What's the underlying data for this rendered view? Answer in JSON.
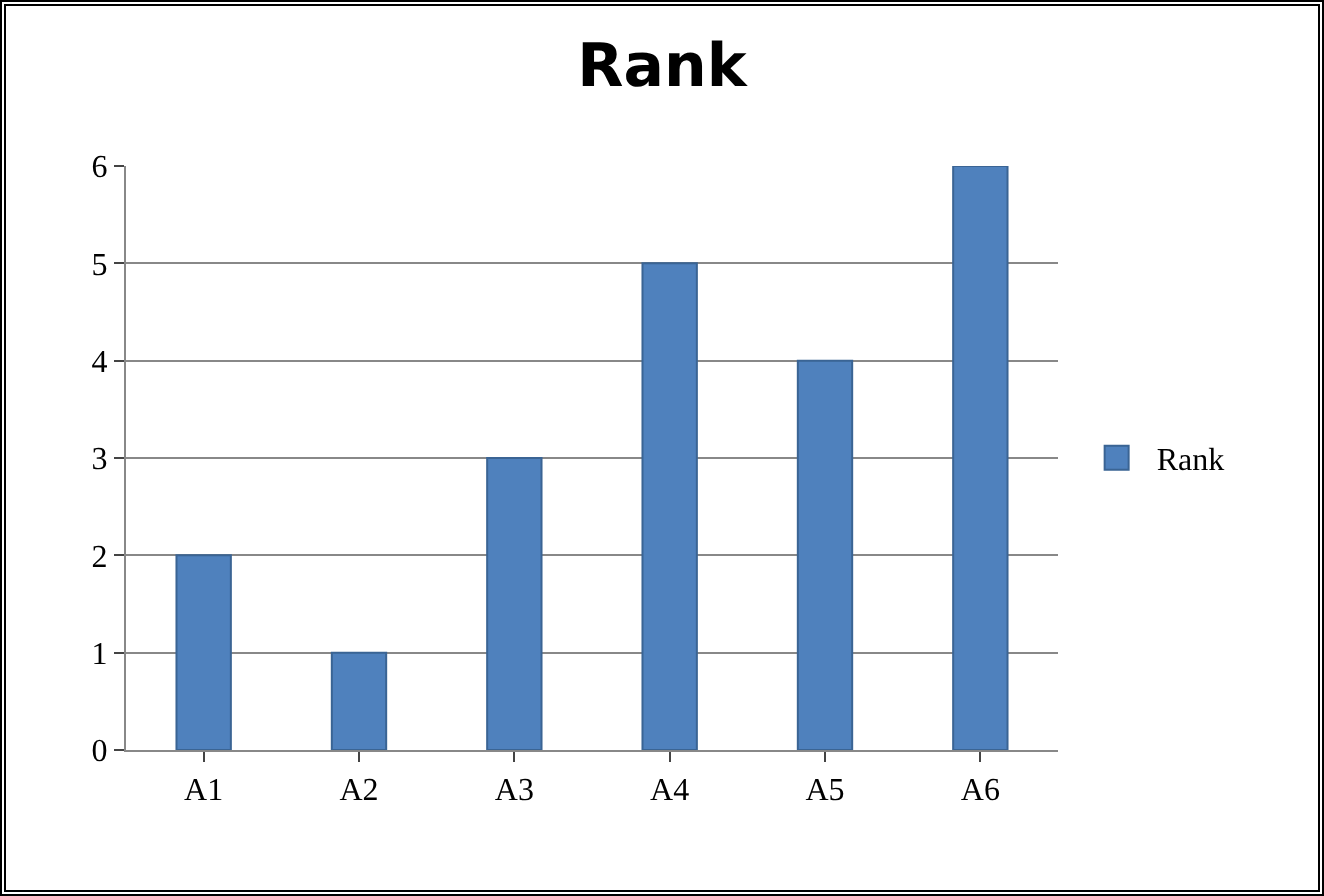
{
  "chart_data": {
    "type": "bar",
    "title": "Rank",
    "categories": [
      "A1",
      "A2",
      "A3",
      "A4",
      "A5",
      "A6"
    ],
    "series": [
      {
        "name": "Rank",
        "color": "#4f81bd",
        "values": [
          2,
          1,
          3,
          5,
          4,
          6
        ]
      }
    ],
    "ylim": [
      0,
      6
    ],
    "yticks": [
      0,
      1,
      2,
      3,
      4,
      5,
      6
    ],
    "grid": "y",
    "legend": "right"
  }
}
